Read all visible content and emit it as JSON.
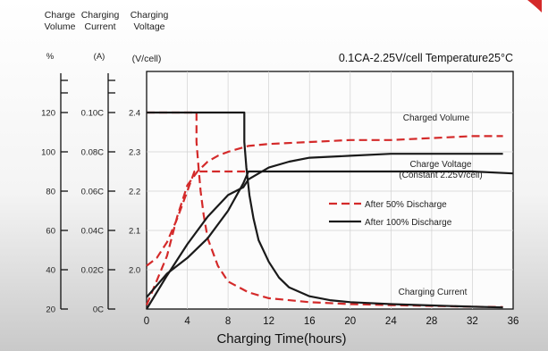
{
  "chart_data": {
    "type": "line",
    "title": "",
    "condition_text": "0.1CA-2.25V/cell  Temperature25°C",
    "xlabel": "Charging Time(hours)",
    "x_ticks": [
      "0",
      "4",
      "8",
      "12",
      "16",
      "20",
      "24",
      "28",
      "32",
      "36"
    ],
    "xlim": [
      0,
      36
    ],
    "axes": {
      "volume": {
        "header": [
          "Charge",
          "Volume"
        ],
        "unit": "%",
        "ticks": [
          "120",
          "100",
          "80",
          "60",
          "40",
          "20"
        ],
        "range": [
          20,
          120
        ]
      },
      "current": {
        "header": [
          "Charging",
          "Current"
        ],
        "unit": "(A)",
        "ticks": [
          "0.10C",
          "0.08C",
          "0.06C",
          "0.04C",
          "0.02C",
          "0C"
        ],
        "range": [
          0,
          0.1
        ]
      },
      "voltage": {
        "header": [
          "Charging",
          "Voltage"
        ],
        "unit": "(V/cell)",
        "ticks": [
          "2.4",
          "2.3",
          "2.2",
          "2.1",
          "2.0"
        ],
        "range": [
          1.9,
          2.4
        ]
      }
    },
    "annotations": {
      "charged_volume": "Charged Volume",
      "charge_voltage_1": "Charge Voltage",
      "charge_voltage_2": "(Constant 2.25V/cell)",
      "charging_current": "Charging Current"
    },
    "legend": [
      {
        "label": "After 50% Discharge",
        "style": "dashed",
        "color": "#d42a2a"
      },
      {
        "label": "After 100% Discharge",
        "style": "solid",
        "color": "#1a1a1a"
      }
    ],
    "series": [
      {
        "legend": "After 50% Discharge",
        "quantity": "charge volume",
        "axis": "volume",
        "x": [
          0,
          2,
          3,
          4,
          5,
          6,
          7,
          8,
          10,
          12,
          16,
          20,
          24,
          28,
          32,
          35
        ],
        "y": [
          22,
          47,
          67,
          83,
          90,
          95,
          98,
          100,
          103,
          104,
          105,
          106,
          106,
          107,
          108,
          108
        ]
      },
      {
        "legend": "After 50% Discharge",
        "quantity": "charging current",
        "axis": "current",
        "x": [
          0,
          4.9,
          4.9,
          5.1,
          5.3,
          5.6,
          6,
          7,
          8,
          10,
          12,
          16,
          20,
          24,
          28,
          32,
          35
        ],
        "y": [
          0.1,
          0.1,
          0.085,
          0.072,
          0.06,
          0.048,
          0.036,
          0.022,
          0.014,
          0.0085,
          0.0055,
          0.0035,
          0.0025,
          0.002,
          0.0016,
          0.0012,
          0.001
        ]
      },
      {
        "legend": "After 50% Discharge",
        "quantity": "charge voltage",
        "axis": "voltage",
        "x": [
          0,
          1,
          2,
          3,
          4,
          4.7,
          5.2,
          6,
          8,
          10
        ],
        "y": [
          2.01,
          2.03,
          2.07,
          2.13,
          2.2,
          2.25,
          2.25,
          2.25,
          2.25,
          2.25
        ]
      },
      {
        "legend": "After 100% Discharge",
        "quantity": "charge volume",
        "axis": "volume",
        "x": [
          0,
          2,
          4,
          6,
          8,
          9.5,
          10,
          12,
          14,
          16,
          20,
          24,
          28,
          32,
          35
        ],
        "y": [
          20,
          37,
          53,
          67,
          78,
          82,
          86,
          92,
          95,
          97,
          98,
          99,
          99,
          99,
          99
        ]
      },
      {
        "legend": "After 100% Discharge",
        "quantity": "charging current",
        "axis": "current",
        "x": [
          0,
          9.6,
          9.6,
          9.8,
          10.1,
          10.5,
          11,
          12,
          13,
          14,
          16,
          18,
          20,
          24,
          28,
          32,
          35
        ],
        "y": [
          0.1,
          0.1,
          0.085,
          0.072,
          0.058,
          0.046,
          0.035,
          0.024,
          0.016,
          0.011,
          0.0065,
          0.0045,
          0.0035,
          0.0025,
          0.0018,
          0.0012,
          0.0008
        ]
      },
      {
        "legend": "After 100% Discharge",
        "quantity": "charge voltage",
        "axis": "voltage",
        "x": [
          0,
          2,
          4,
          6,
          8,
          9.5,
          10,
          16,
          24,
          32,
          36
        ],
        "y": [
          1.93,
          1.99,
          2.03,
          2.08,
          2.15,
          2.22,
          2.25,
          2.25,
          2.25,
          2.25,
          2.245
        ]
      }
    ]
  }
}
